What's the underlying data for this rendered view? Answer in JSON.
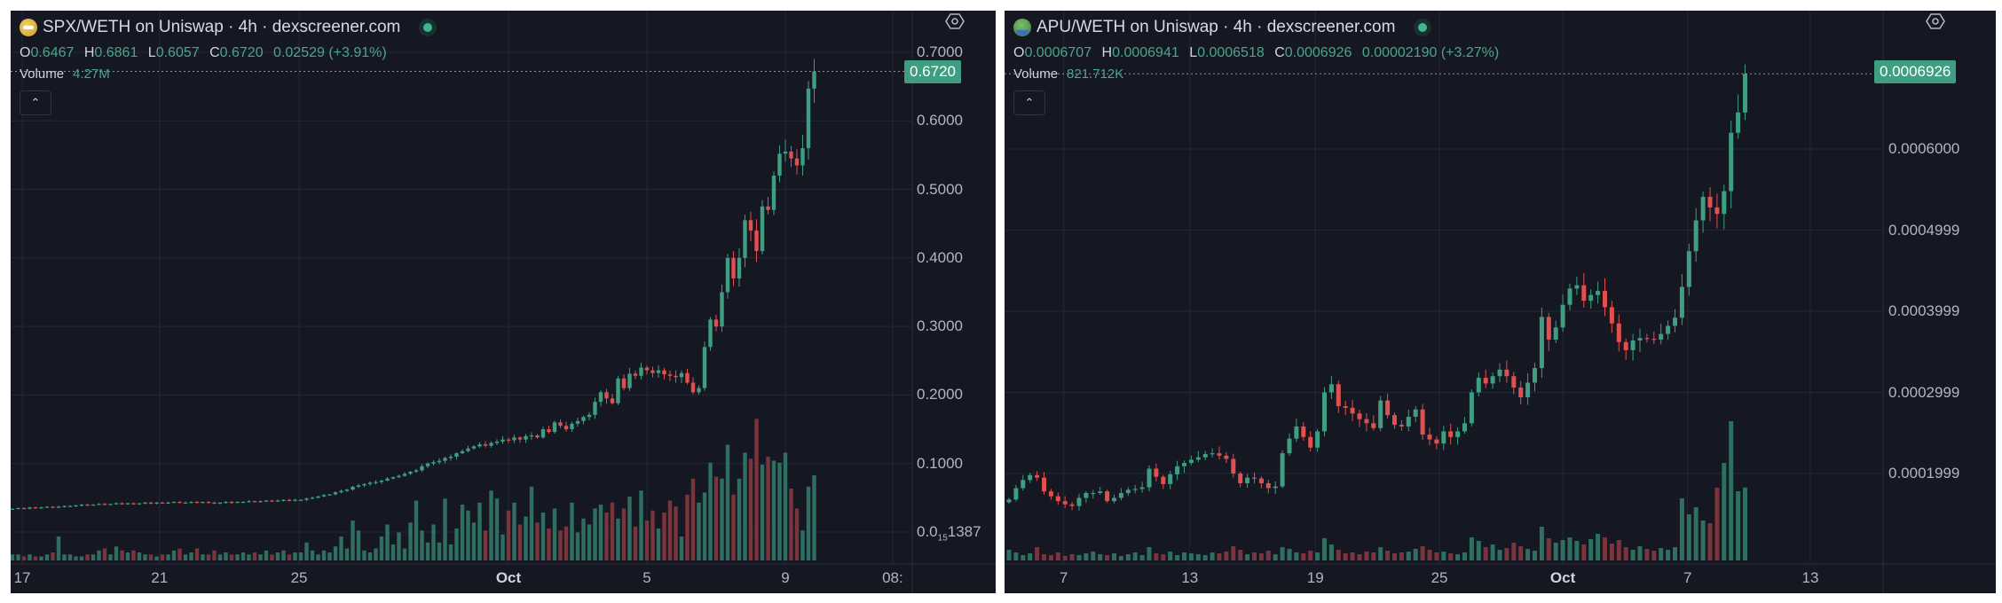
{
  "left": {
    "title": "SPX/WETH on Uniswap · 4h · dexscreener.com",
    "ohlc": {
      "o_label": "O",
      "o": "0.6467",
      "h_label": "H",
      "h": "0.6861",
      "l_label": "L",
      "l": "0.6057",
      "c_label": "C",
      "c": "0.6720",
      "change": "0.02529 (+3.91%)"
    },
    "volume_label": "Volume",
    "volume_value": "4.27M",
    "last_price": "0.6720",
    "collapse_icon": "chevron-up-icon",
    "settings_icon": "gear-icon"
  },
  "right": {
    "title": "APU/WETH on Uniswap · 4h · dexscreener.com",
    "ohlc": {
      "o_label": "O",
      "o": "0.0006707",
      "h_label": "H",
      "h": "0.0006941",
      "l_label": "L",
      "l": "0.0006518",
      "c_label": "C",
      "c": "0.0006926",
      "change": "0.00002190 (+3.27%)"
    },
    "volume_label": "Volume",
    "volume_value": "821.712K",
    "last_price": "0.0006926",
    "collapse_icon": "chevron-up-icon",
    "settings_icon": "gear-icon"
  },
  "colors": {
    "up": "#3f9d82",
    "down": "#e0504f",
    "up_vol": "#2f6f62",
    "down_vol": "#7a343b",
    "grid": "#242835",
    "bg": "#151822"
  },
  "chart_data": [
    {
      "type": "candlestick",
      "title": "SPX/WETH on Uniswap · 4h",
      "interval": "4h",
      "ylim": [
        0,
        0.7
      ],
      "y_ticks": [
        {
          "label": "0.7000",
          "value": 0.7
        },
        {
          "label": "0.6000",
          "value": 0.6
        },
        {
          "label": "0.5000",
          "value": 0.5
        },
        {
          "label": "0.4000",
          "value": 0.4
        },
        {
          "label": "0.3000",
          "value": 0.3
        },
        {
          "label": "0.2000",
          "value": 0.2
        },
        {
          "label": "0.1000",
          "value": 0.1
        },
        {
          "label_main": "0.0",
          "label_sub": "15",
          "label_tail": "1387",
          "value": 0.0
        }
      ],
      "x_ticks": [
        {
          "label": "17",
          "at": 1.7
        },
        {
          "label": "21",
          "at": 25.5
        },
        {
          "label": "25",
          "at": 49.7
        },
        {
          "label": "Oct",
          "at": 86,
          "bold": true
        },
        {
          "label": "5",
          "at": 110
        },
        {
          "label": "9",
          "at": 134
        },
        {
          "label": "08:",
          "at": 152.6
        }
      ],
      "close": [
        0.034,
        0.035,
        0.034,
        0.036,
        0.035,
        0.036,
        0.037,
        0.036,
        0.037,
        0.038,
        0.038,
        0.039,
        0.04,
        0.039,
        0.04,
        0.041,
        0.04,
        0.041,
        0.042,
        0.041,
        0.042,
        0.041,
        0.042,
        0.043,
        0.042,
        0.043,
        0.042,
        0.043,
        0.044,
        0.043,
        0.043,
        0.044,
        0.043,
        0.044,
        0.043,
        0.042,
        0.043,
        0.044,
        0.043,
        0.044,
        0.044,
        0.045,
        0.044,
        0.045,
        0.046,
        0.045,
        0.046,
        0.047,
        0.046,
        0.047,
        0.047,
        0.049,
        0.05,
        0.052,
        0.054,
        0.055,
        0.058,
        0.06,
        0.062,
        0.066,
        0.068,
        0.07,
        0.072,
        0.073,
        0.075,
        0.078,
        0.08,
        0.082,
        0.085,
        0.088,
        0.09,
        0.096,
        0.1,
        0.102,
        0.104,
        0.108,
        0.11,
        0.115,
        0.118,
        0.122,
        0.125,
        0.128,
        0.126,
        0.13,
        0.132,
        0.135,
        0.134,
        0.138,
        0.135,
        0.14,
        0.141,
        0.138,
        0.15,
        0.146,
        0.16,
        0.155,
        0.15,
        0.158,
        0.162,
        0.168,
        0.171,
        0.19,
        0.204,
        0.195,
        0.188,
        0.224,
        0.21,
        0.231,
        0.228,
        0.24,
        0.236,
        0.232,
        0.236,
        0.23,
        0.228,
        0.226,
        0.232,
        0.218,
        0.204,
        0.21,
        0.27,
        0.31,
        0.3,
        0.35,
        0.4,
        0.37,
        0.4,
        0.455,
        0.44,
        0.41,
        0.475,
        0.47,
        0.52,
        0.552,
        0.555,
        0.545,
        0.535,
        0.56,
        0.647,
        0.672
      ],
      "volume_unit": "M",
      "volume": [
        0.3,
        0.3,
        0.2,
        0.3,
        0.2,
        0.2,
        0.3,
        0.4,
        1.2,
        0.3,
        0.3,
        0.2,
        0.2,
        0.3,
        0.3,
        0.5,
        0.6,
        0.3,
        0.7,
        0.5,
        0.4,
        0.5,
        0.4,
        0.3,
        0.3,
        0.2,
        0.3,
        0.3,
        0.5,
        0.6,
        0.3,
        0.4,
        0.6,
        0.3,
        0.3,
        0.5,
        0.3,
        0.4,
        0.3,
        0.3,
        0.4,
        0.3,
        0.4,
        0.3,
        0.5,
        0.3,
        0.4,
        0.5,
        0.3,
        0.4,
        0.4,
        0.9,
        0.5,
        0.3,
        0.5,
        0.4,
        0.7,
        1.2,
        0.6,
        2.0,
        1.5,
        0.5,
        0.4,
        0.6,
        1.2,
        1.8,
        0.8,
        1.4,
        0.6,
        1.9,
        3.0,
        1.5,
        0.9,
        1.8,
        0.9,
        3.1,
        0.8,
        1.6,
        2.8,
        2.5,
        1.9,
        2.9,
        1.5,
        3.5,
        3.1,
        1.3,
        2.5,
        2.9,
        1.8,
        2.2,
        3.7,
        1.9,
        2.4,
        1.6,
        2.6,
        1.5,
        1.7,
        2.9,
        1.4,
        2.1,
        1.8,
        2.6,
        2.8,
        2.4,
        2.9,
        2.1,
        2.6,
        3.2,
        1.7,
        3.5,
        2.0,
        2.5,
        1.6,
        2.4,
        3.0,
        2.7,
        1.2,
        3.3,
        4.1,
        2.9,
        3.4,
        4.9,
        4.2,
        4.1,
        5.8,
        3.3,
        4.1,
        5.4,
        5.1,
        7.1,
        4.8,
        5.2,
        5.0,
        4.9,
        5.4,
        3.6,
        2.6,
        1.5,
        3.7,
        4.27
      ]
    },
    {
      "type": "candlestick",
      "title": "APU/WETH on Uniswap · 4h",
      "interval": "4h",
      "ylim": [
        0.00015,
        0.0007
      ],
      "y_ticks": [
        {
          "label": "0.0006000",
          "value": 0.0006
        },
        {
          "label": "0.0004999",
          "value": 0.0005
        },
        {
          "label": "0.0003999",
          "value": 0.0004
        },
        {
          "label": "0.0002999",
          "value": 0.0003
        },
        {
          "label": "0.0001999",
          "value": 0.0002
        }
      ],
      "x_ticks": [
        {
          "label": "7",
          "at": 7.8
        },
        {
          "label": "13",
          "at": 25.8
        },
        {
          "label": "19",
          "at": 43.7
        },
        {
          "label": "25",
          "at": 61.4
        },
        {
          "label": "Oct",
          "at": 79,
          "bold": true
        },
        {
          "label": "7",
          "at": 96.8
        },
        {
          "label": "13",
          "at": 114.3
        }
      ],
      "close": [
        0.000168,
        0.000182,
        0.000192,
        0.000198,
        0.000195,
        0.000178,
        0.000172,
        0.000166,
        0.000162,
        0.00016,
        0.00017,
        0.000176,
        0.000176,
        0.000178,
        0.000166,
        0.00017,
        0.000176,
        0.00018,
        0.000181,
        0.000183,
        0.000206,
        0.000196,
        0.000187,
        0.000199,
        0.000209,
        0.000213,
        0.000217,
        0.00022,
        0.000224,
        0.000225,
        0.000222,
        0.000218,
        0.0002,
        0.000188,
        0.000195,
        0.000194,
        0.000188,
        0.000182,
        0.000184,
        0.000225,
        0.000243,
        0.000258,
        0.000245,
        0.000232,
        0.000252,
        0.0003,
        0.00031,
        0.000283,
        0.000281,
        0.000274,
        0.000267,
        0.000262,
        0.000256,
        0.00029,
        0.000272,
        0.00026,
        0.000258,
        0.00027,
        0.000279,
        0.000248,
        0.000242,
        0.000237,
        0.000252,
        0.000245,
        0.000252,
        0.000262,
        0.0003,
        0.000318,
        0.000311,
        0.00032,
        0.000328,
        0.00032,
        0.000306,
        0.000294,
        0.000312,
        0.00033,
        0.000393,
        0.000365,
        0.00038,
        0.000408,
        0.000428,
        0.000432,
        0.000413,
        0.00042,
        0.000425,
        0.000405,
        0.000385,
        0.000362,
        0.000352,
        0.000364,
        0.000367,
        0.000366,
        0.000365,
        0.000372,
        0.000382,
        0.000392,
        0.00043,
        0.000474,
        0.000512,
        0.000541,
        0.000528,
        0.00052,
        0.000548,
        0.00062,
        0.000645,
        0.0006926
      ],
      "volume_unit": "K",
      "volume": [
        120,
        90,
        60,
        80,
        150,
        70,
        60,
        90,
        50,
        70,
        60,
        80,
        100,
        70,
        60,
        80,
        50,
        70,
        90,
        60,
        150,
        80,
        70,
        100,
        60,
        90,
        80,
        70,
        60,
        90,
        80,
        100,
        160,
        120,
        70,
        90,
        80,
        110,
        70,
        150,
        130,
        90,
        80,
        110,
        90,
        250,
        180,
        120,
        80,
        90,
        70,
        100,
        90,
        150,
        110,
        80,
        90,
        100,
        130,
        160,
        120,
        90,
        100,
        80,
        70,
        90,
        260,
        220,
        150,
        180,
        120,
        140,
        200,
        160,
        130,
        110,
        380,
        250,
        200,
        230,
        260,
        220,
        180,
        240,
        300,
        260,
        190,
        230,
        150,
        120,
        160,
        130,
        110,
        140,
        120,
        150,
        700,
        520,
        600,
        450,
        420,
        820,
        1100,
        1570,
        780,
        822
      ]
    }
  ]
}
